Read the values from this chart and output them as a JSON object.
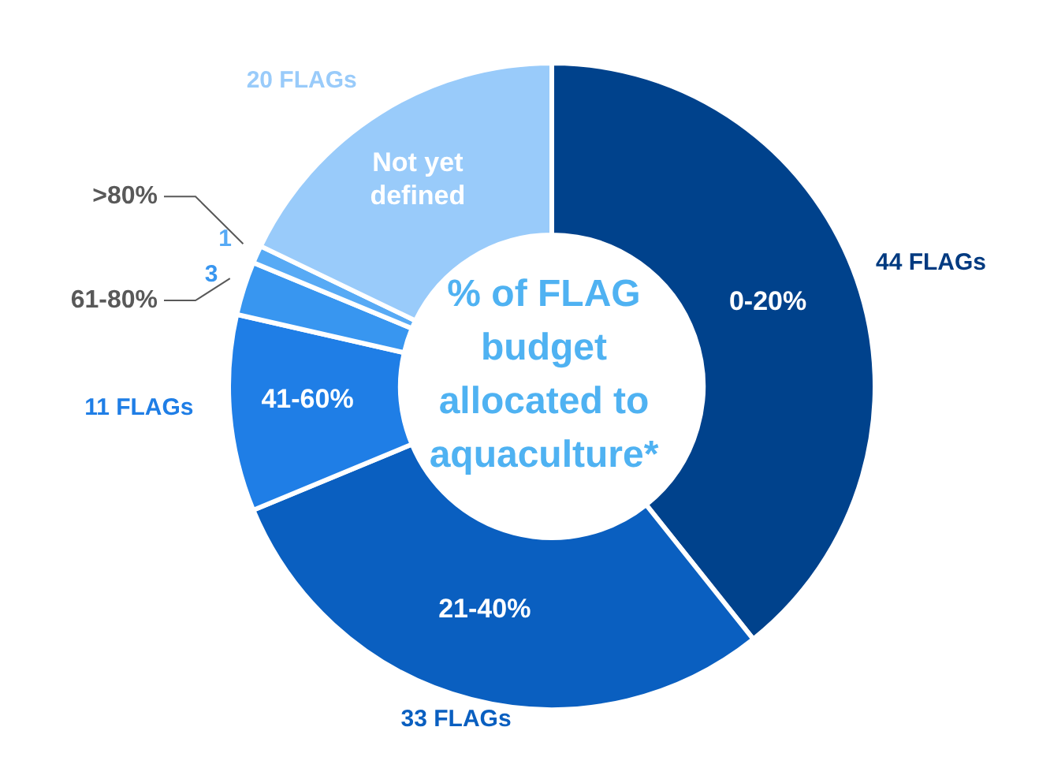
{
  "chart_data": {
    "type": "donut",
    "title": "% of FLAG budget allocated to aquaculture*",
    "categories": [
      "0-20%",
      "21-40%",
      "41-60%",
      "61-80%",
      ">80%",
      "Not yet defined"
    ],
    "values": [
      44,
      33,
      11,
      3,
      1,
      20
    ],
    "value_labels": [
      "44 FLAGs",
      "33 FLAGs",
      "11 FLAGs",
      "3",
      "1",
      "20 FLAGs"
    ],
    "colors": [
      "#00428c",
      "#0a5fc0",
      "#1f7ee6",
      "#3896f0",
      "#57aaf5",
      "#99cbfa"
    ]
  }
}
